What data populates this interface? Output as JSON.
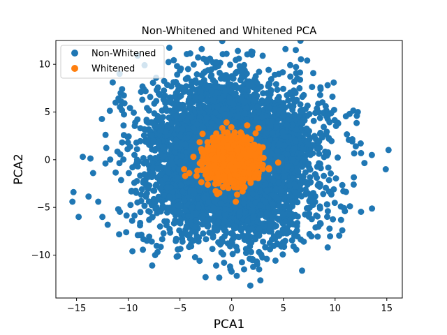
{
  "chart_data": {
    "type": "scatter",
    "title": "Non-Whitened and Whitened PCA",
    "xlabel": "PCA1",
    "ylabel": "PCA2",
    "xlim": [
      -17,
      16.5
    ],
    "ylim": [
      -14.5,
      12.5
    ],
    "xticks": [
      -15,
      -10,
      -5,
      0,
      5,
      10,
      15
    ],
    "yticks": [
      -10,
      -5,
      0,
      5,
      10
    ],
    "xtick_labels": [
      "−15",
      "−10",
      "−5",
      "0",
      "5",
      "10",
      "15"
    ],
    "ytick_labels": [
      "−10",
      "−5",
      "0",
      "5",
      "10"
    ],
    "grid": false,
    "legend_position": "top-left",
    "series": [
      {
        "name": "Non-Whitened",
        "color": "#1f77b4",
        "marker": "circle",
        "distribution": {
          "center": [
            0,
            0
          ],
          "std": [
            4,
            4
          ],
          "count": 5000
        },
        "points": [
          [
            -15.4,
            -4.4
          ],
          [
            -15.3,
            -3.4
          ],
          [
            -14.8,
            -6.0
          ],
          [
            -14.4,
            0.3
          ],
          [
            -13.4,
            -1.4
          ],
          [
            -12.9,
            -4.4
          ],
          [
            -12.5,
            -6.0
          ],
          [
            -12.2,
            2.6
          ],
          [
            -11.5,
            8.1
          ],
          [
            -10.6,
            7.4
          ],
          [
            -10.2,
            -7.6
          ],
          [
            -9.6,
            -9.6
          ],
          [
            -8.2,
            -8.5
          ],
          [
            -7.4,
            -10.0
          ],
          [
            -5.2,
            -10.1
          ],
          [
            -3.1,
            -10.6
          ],
          [
            -2.9,
            11.6
          ],
          [
            -2.1,
            10.6
          ],
          [
            -1.5,
            -11.1
          ],
          [
            -0.5,
            11.1
          ],
          [
            0.6,
            11.4
          ],
          [
            1.2,
            -11.5
          ],
          [
            1.8,
            -13.2
          ],
          [
            3.0,
            10.9
          ],
          [
            3.4,
            -10.4
          ],
          [
            4.8,
            -9.1
          ],
          [
            5.2,
            11.6
          ],
          [
            6.2,
            11.5
          ],
          [
            7.3,
            10.4
          ],
          [
            8.6,
            7.4
          ],
          [
            9.3,
            -5.4
          ],
          [
            10.3,
            3.8
          ],
          [
            10.7,
            -7.4
          ],
          [
            10.8,
            -3.3
          ],
          [
            11.4,
            4.8
          ],
          [
            11.8,
            -2.6
          ],
          [
            12.0,
            1.4
          ],
          [
            12.1,
            4.6
          ],
          [
            12.2,
            5.0
          ],
          [
            14.9,
            -1.0
          ]
        ]
      },
      {
        "name": "Whitened",
        "color": "#ff7f0e",
        "marker": "circle",
        "distribution": {
          "center": [
            0,
            0
          ],
          "std": [
            1,
            1
          ],
          "count": 2500
        },
        "points": [
          [
            -4.6,
            -1.0
          ],
          [
            -4.5,
            -1.7
          ],
          [
            -4.1,
            -1.4
          ],
          [
            -3.7,
            0.3
          ],
          [
            -3.4,
            -1.7
          ],
          [
            -1.4,
            -3.6
          ],
          [
            -0.5,
            3.9
          ],
          [
            0.4,
            -4.4
          ],
          [
            1.5,
            3.6
          ],
          [
            3.0,
            1.3
          ],
          [
            3.6,
            -1.0
          ],
          [
            4.5,
            -0.3
          ]
        ]
      }
    ]
  }
}
